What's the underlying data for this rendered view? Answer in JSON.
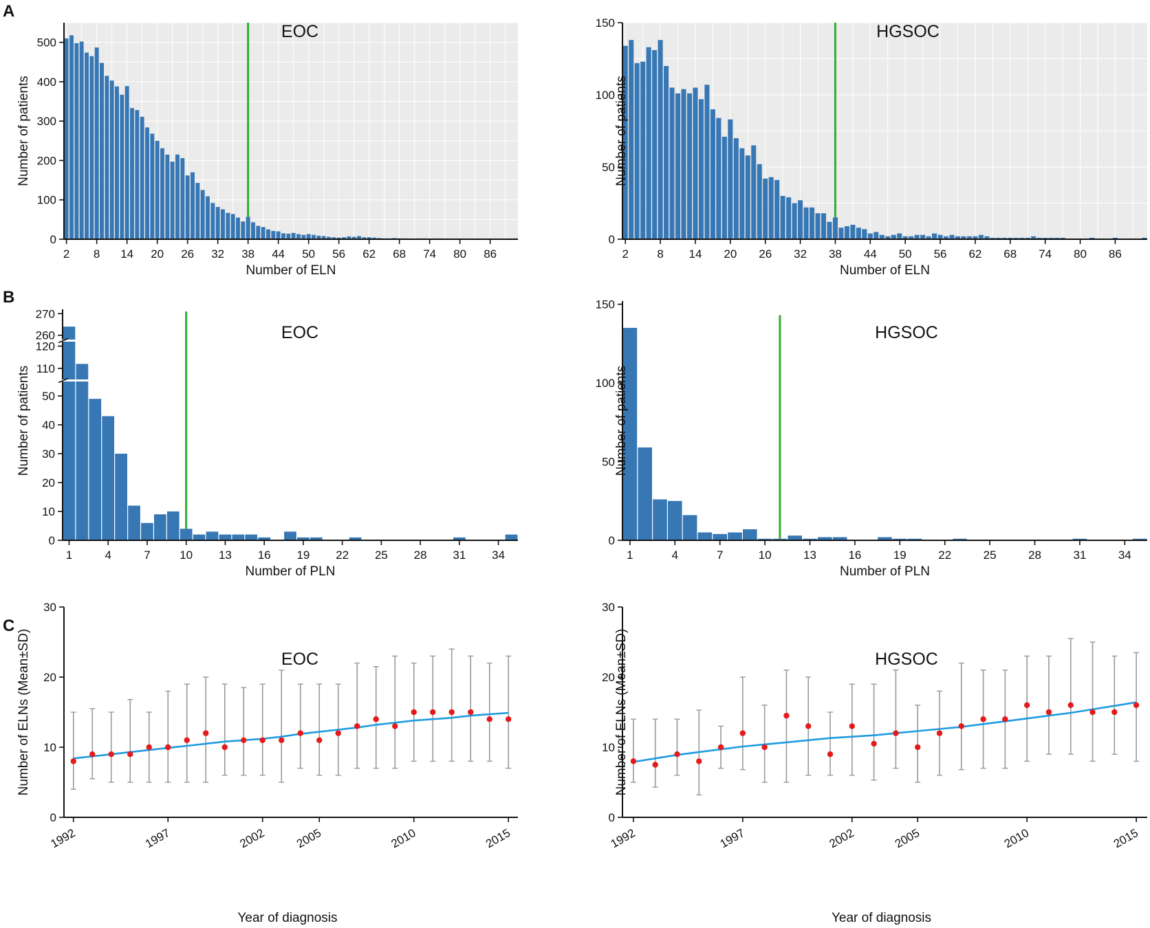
{
  "panel_letters": [
    "A",
    "B",
    "C"
  ],
  "colors": {
    "bar": "#3777b4",
    "threshold": "#33aa33",
    "grid_bg": "#ebebeb",
    "gridline": "#ffffff",
    "point": "#e41a1c",
    "trend": "#1e9be0",
    "errorbar": "#999999",
    "axis": "#111111"
  },
  "chart_data": [
    {
      "id": "A-EOC",
      "type": "bar",
      "title": "EOC",
      "xlabel": "Number of ELN",
      "ylabel": "Number of patients",
      "background": "grey-grid",
      "x": [
        2,
        3,
        4,
        5,
        6,
        7,
        8,
        9,
        10,
        11,
        12,
        13,
        14,
        15,
        16,
        17,
        18,
        19,
        20,
        21,
        22,
        23,
        24,
        25,
        26,
        27,
        28,
        29,
        30,
        31,
        32,
        33,
        34,
        35,
        36,
        37,
        38,
        39,
        40,
        41,
        42,
        43,
        44,
        45,
        46,
        47,
        48,
        49,
        50,
        51,
        52,
        53,
        54,
        55,
        56,
        57,
        58,
        59,
        60,
        61,
        62,
        63,
        64,
        65,
        66,
        67,
        68,
        69,
        70,
        71,
        72,
        73,
        74,
        75,
        76,
        77,
        78,
        79,
        80,
        81,
        82,
        83,
        84,
        85,
        86,
        87,
        88,
        89,
        90,
        91
      ],
      "values": [
        510,
        518,
        498,
        502,
        474,
        465,
        487,
        448,
        415,
        403,
        388,
        367,
        389,
        333,
        328,
        311,
        284,
        268,
        250,
        231,
        215,
        197,
        215,
        206,
        162,
        170,
        143,
        125,
        109,
        92,
        82,
        76,
        67,
        64,
        55,
        45,
        57,
        43,
        34,
        31,
        25,
        21,
        20,
        15,
        14,
        16,
        13,
        11,
        13,
        11,
        9,
        8,
        6,
        5,
        4,
        5,
        7,
        6,
        8,
        5,
        5,
        4,
        3,
        2,
        2,
        3,
        2,
        2,
        1,
        1,
        2,
        2,
        1,
        2,
        1,
        1,
        1,
        1,
        1,
        1,
        1,
        0,
        1,
        1,
        1,
        0,
        1,
        1,
        0,
        2
      ],
      "xlim": [
        1.5,
        91.5
      ],
      "ylim": [
        0,
        550
      ],
      "yticks": [
        0,
        100,
        200,
        300,
        400,
        500
      ],
      "xticks": [
        2,
        8,
        14,
        20,
        26,
        32,
        38,
        44,
        50,
        56,
        62,
        68,
        74,
        80,
        86
      ],
      "threshold_x": 38,
      "threshold_y_top": 550
    },
    {
      "id": "A-HGSOC",
      "type": "bar",
      "title": "HGSOC",
      "xlabel": "Number of ELN",
      "ylabel": "Number of patients",
      "background": "grey-grid",
      "x": [
        2,
        3,
        4,
        5,
        6,
        7,
        8,
        9,
        10,
        11,
        12,
        13,
        14,
        15,
        16,
        17,
        18,
        19,
        20,
        21,
        22,
        23,
        24,
        25,
        26,
        27,
        28,
        29,
        30,
        31,
        32,
        33,
        34,
        35,
        36,
        37,
        38,
        39,
        40,
        41,
        42,
        43,
        44,
        45,
        46,
        47,
        48,
        49,
        50,
        51,
        52,
        53,
        54,
        55,
        56,
        57,
        58,
        59,
        60,
        61,
        62,
        63,
        64,
        65,
        66,
        67,
        68,
        69,
        70,
        71,
        72,
        73,
        74,
        75,
        76,
        77,
        78,
        79,
        80,
        81,
        82,
        83,
        84,
        85,
        86,
        87,
        88,
        89,
        90,
        91
      ],
      "values": [
        134,
        138,
        122,
        123,
        133,
        131,
        138,
        120,
        105,
        101,
        104,
        101,
        105,
        97,
        107,
        90,
        84,
        71,
        83,
        70,
        63,
        58,
        65,
        52,
        42,
        43,
        41,
        30,
        29,
        25,
        27,
        22,
        22,
        18,
        18,
        12,
        15,
        8,
        9,
        10,
        8,
        7,
        4,
        5,
        3,
        2,
        3,
        4,
        2,
        2,
        3,
        3,
        2,
        4,
        3,
        2,
        3,
        2,
        2,
        2,
        2,
        3,
        2,
        1,
        1,
        1,
        1,
        1,
        1,
        1,
        2,
        1,
        1,
        1,
        1,
        1,
        0,
        0,
        0,
        0,
        1,
        0,
        0,
        0,
        1,
        0,
        0,
        0,
        0,
        1
      ],
      "xlim": [
        1.5,
        91.5
      ],
      "ylim": [
        0,
        150
      ],
      "yticks": [
        0,
        50,
        100,
        150
      ],
      "xticks": [
        2,
        8,
        14,
        20,
        26,
        32,
        38,
        44,
        50,
        56,
        62,
        68,
        74,
        80,
        86
      ],
      "threshold_x": 38,
      "threshold_y_top": 150
    },
    {
      "id": "B-EOC",
      "type": "bar",
      "title": "EOC",
      "xlabel": "Number of PLN",
      "ylabel": "Number of patients",
      "broken_axis": true,
      "x": [
        1,
        2,
        3,
        4,
        5,
        6,
        7,
        8,
        9,
        10,
        11,
        12,
        13,
        14,
        15,
        16,
        17,
        18,
        19,
        20,
        21,
        22,
        23,
        24,
        25,
        26,
        27,
        28,
        29,
        30,
        31,
        32,
        33,
        34,
        35
      ],
      "values": [
        264,
        112,
        49,
        43,
        30,
        12,
        6,
        9,
        10,
        4,
        2,
        3,
        2,
        2,
        2,
        1,
        0,
        3,
        1,
        1,
        0,
        0,
        1,
        0,
        0,
        0,
        0,
        0,
        0,
        0,
        1,
        0,
        0,
        0,
        2
      ],
      "xlim": [
        0.5,
        35.5
      ],
      "ylim_segments": [
        [
          0,
          55
        ],
        [
          105,
          122
        ],
        [
          258,
          272
        ]
      ],
      "yticks": [
        0,
        10,
        20,
        30,
        40,
        50,
        110,
        120,
        260,
        270
      ],
      "xticks": [
        1,
        4,
        7,
        10,
        13,
        16,
        19,
        22,
        25,
        28,
        31,
        34
      ],
      "threshold_x": 10,
      "threshold_y_top": 271
    },
    {
      "id": "B-HGSOC",
      "type": "bar",
      "title": "HGSOC",
      "xlabel": "Number of PLN",
      "ylabel": "Number of patients",
      "x": [
        1,
        2,
        3,
        4,
        5,
        6,
        7,
        8,
        9,
        10,
        11,
        12,
        13,
        14,
        15,
        16,
        17,
        18,
        19,
        20,
        21,
        22,
        23,
        24,
        25,
        26,
        27,
        28,
        29,
        30,
        31,
        32,
        33,
        34,
        35
      ],
      "values": [
        135,
        59,
        26,
        25,
        16,
        5,
        4,
        5,
        7,
        1,
        1,
        3,
        1,
        2,
        2,
        0,
        0,
        2,
        1,
        1,
        0,
        0,
        1,
        0,
        0,
        0,
        0,
        0,
        0,
        0,
        1,
        0,
        0,
        0,
        1
      ],
      "xlim": [
        0.5,
        35.5
      ],
      "ylim": [
        0,
        152
      ],
      "yticks": [
        0,
        50,
        100,
        150
      ],
      "xticks": [
        1,
        4,
        7,
        10,
        13,
        16,
        19,
        22,
        25,
        28,
        31,
        34
      ],
      "threshold_x": 11,
      "threshold_y_top": 143
    },
    {
      "id": "C-EOC",
      "type": "scatter",
      "title": "EOC",
      "xlabel": "Year of diagnosis",
      "ylabel": "Number of ELNs (Mean±SD)",
      "x": [
        1992,
        1993,
        1994,
        1995,
        1996,
        1997,
        1998,
        1999,
        2000,
        2001,
        2002,
        2003,
        2004,
        2005,
        2006,
        2007,
        2008,
        2009,
        2010,
        2011,
        2012,
        2013,
        2014,
        2015
      ],
      "mean": [
        8,
        9,
        9,
        9,
        10,
        10,
        11,
        12,
        10,
        11,
        11,
        11,
        12,
        11,
        12,
        13,
        14,
        13,
        15,
        15,
        15,
        15,
        14,
        14
      ],
      "sd_low": [
        4,
        5.5,
        5,
        5,
        5,
        5,
        5,
        5,
        6,
        6,
        6,
        5,
        7,
        6,
        6,
        7,
        7,
        7,
        8,
        8,
        8,
        8,
        8,
        7
      ],
      "sd_high": [
        15,
        15.5,
        15,
        16.8,
        15,
        18,
        19,
        20,
        19,
        18.5,
        19,
        21,
        19,
        19,
        19,
        22,
        21.5,
        23,
        22,
        23,
        24,
        23,
        22,
        23
      ],
      "trend": [
        8.4,
        8.7,
        9.0,
        9.3,
        9.6,
        9.9,
        10.2,
        10.5,
        10.8,
        11.0,
        11.2,
        11.5,
        11.9,
        12.2,
        12.5,
        12.8,
        13.2,
        13.5,
        13.8,
        14.0,
        14.2,
        14.5,
        14.7,
        14.9
      ],
      "xlim": [
        1991.5,
        2015.5
      ],
      "ylim": [
        0,
        30
      ],
      "yticks": [
        0,
        10,
        20,
        30
      ],
      "xticks": [
        1992,
        1997,
        2002,
        2005,
        2010,
        2015
      ]
    },
    {
      "id": "C-HGSOC",
      "type": "scatter",
      "title": "HGSOC",
      "xlabel": "Year of diagnosis",
      "ylabel": "Number of ELNs (Mean±SD)",
      "x": [
        1992,
        1993,
        1994,
        1995,
        1996,
        1997,
        1998,
        1999,
        2000,
        2001,
        2002,
        2003,
        2004,
        2005,
        2006,
        2007,
        2008,
        2009,
        2010,
        2011,
        2012,
        2013,
        2014,
        2015
      ],
      "mean": [
        8,
        7.5,
        9,
        8,
        10,
        12,
        10,
        14.5,
        13,
        9,
        13,
        10.5,
        12,
        10,
        12,
        13,
        14,
        14,
        16,
        15,
        16,
        15,
        15,
        16
      ],
      "sd_low": [
        5,
        4.3,
        6,
        3.2,
        7,
        6.8,
        5,
        5,
        6,
        6,
        6,
        5.3,
        7,
        5,
        6,
        6.8,
        7,
        7,
        8,
        9,
        9,
        8,
        9,
        8
      ],
      "sd_high": [
        14,
        14,
        14,
        15.3,
        13,
        20,
        16,
        21,
        20,
        15,
        19,
        19,
        21,
        16,
        18,
        22,
        21,
        21,
        23,
        23,
        25.5,
        25,
        23,
        23.5
      ],
      "trend": [
        7.9,
        8.4,
        8.9,
        9.3,
        9.7,
        10.1,
        10.4,
        10.7,
        11.0,
        11.3,
        11.5,
        11.7,
        12.0,
        12.3,
        12.6,
        12.9,
        13.3,
        13.7,
        14.1,
        14.5,
        14.9,
        15.4,
        15.9,
        16.4
      ],
      "xlim": [
        1991.5,
        2015.5
      ],
      "ylim": [
        0,
        30
      ],
      "yticks": [
        0,
        10,
        20,
        30
      ],
      "xticks": [
        1992,
        1997,
        2002,
        2005,
        2010,
        2015
      ]
    }
  ]
}
